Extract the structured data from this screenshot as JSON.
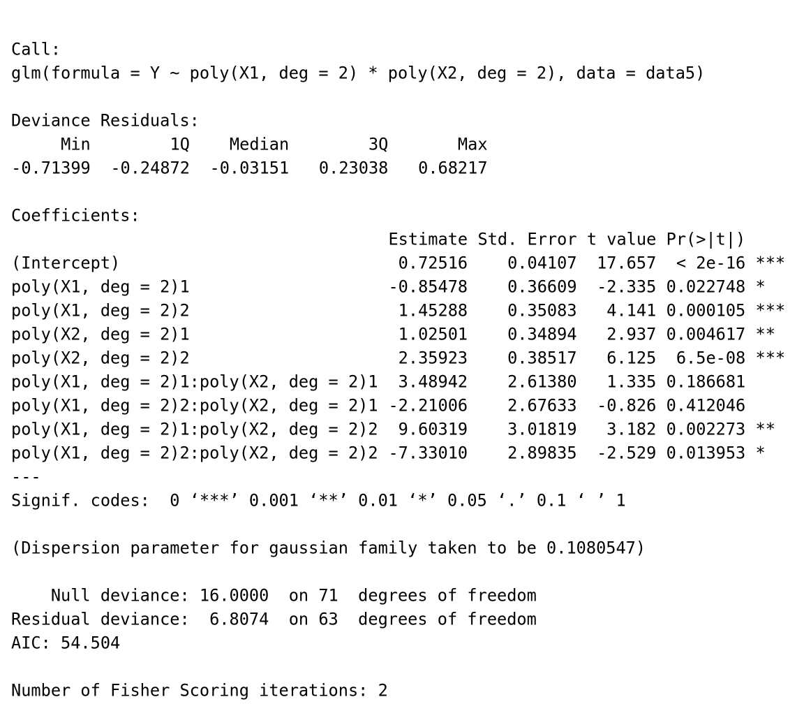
{
  "call_label": "Call:",
  "call": "glm(formula = Y ~ poly(X1, deg = 2) * poly(X2, deg = 2), data = data5)",
  "residuals": {
    "label": "Deviance Residuals:",
    "headers": [
      "Min",
      "1Q",
      "Median",
      "3Q",
      "Max"
    ],
    "values": [
      "-0.71399",
      "-0.24872",
      "-0.03151",
      "0.23038",
      "0.68217"
    ]
  },
  "coefficients": {
    "label": "Coefficients:",
    "headers": [
      "Estimate",
      "Std. Error",
      "t value",
      "Pr(>|t|)"
    ],
    "rows": [
      [
        "(Intercept)",
        "0.72516",
        "0.04107",
        "17.657",
        "< 2e-16",
        "***"
      ],
      [
        "poly(X1, deg = 2)1",
        "-0.85478",
        "0.36609",
        "-2.335",
        "0.022748",
        "*"
      ],
      [
        "poly(X1, deg = 2)2",
        "1.45288",
        "0.35083",
        "4.141",
        "0.000105",
        "***"
      ],
      [
        "poly(X2, deg = 2)1",
        "1.02501",
        "0.34894",
        "2.937",
        "0.004617",
        "**"
      ],
      [
        "poly(X2, deg = 2)2",
        "2.35923",
        "0.38517",
        "6.125",
        "6.5e-08",
        "***"
      ],
      [
        "poly(X1, deg = 2)1:poly(X2, deg = 2)1",
        "3.48942",
        "2.61380",
        "1.335",
        "0.186681"
      ],
      [
        "poly(X1, deg = 2)2:poly(X2, deg = 2)1",
        "-2.21006",
        "2.67633",
        "-0.826",
        "0.412046"
      ],
      [
        "poly(X1, deg = 2)1:poly(X2, deg = 2)2",
        "9.60319",
        "3.01819",
        "3.182",
        "0.002273",
        "**"
      ],
      [
        "poly(X1, deg = 2)2:poly(X2, deg = 2)2",
        "-7.33010",
        "2.89835",
        "-2.529",
        "0.013953",
        "*"
      ]
    ]
  },
  "separator": "---",
  "signif": "Signif. codes:  0 ‘***’ 0.001 ‘**’ 0.01 ‘*’ 0.05 ‘.’ 0.1 ‘ ’ 1",
  "dispersion": "(Dispersion parameter for gaussian family taken to be 0.1080547)",
  "deviance_lines": [
    "    Null deviance: 16.0000  on 71  degrees of freedom",
    "Residual deviance:  6.8074  on 63  degrees of freedom"
  ],
  "aic": "AIC: 54.504",
  "iterations": "Number of Fisher Scoring iterations: 2"
}
